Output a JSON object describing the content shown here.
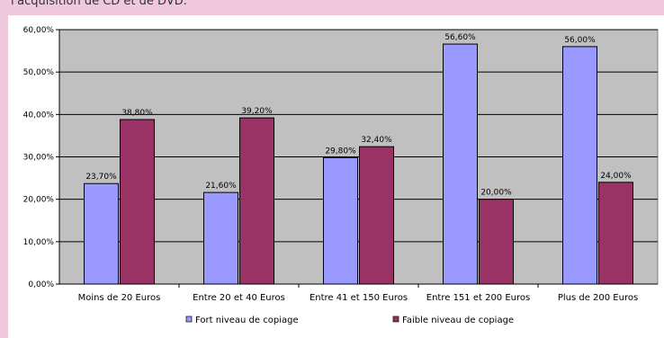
{
  "caption": "l'acquisition de CD et de DVD.",
  "colors": {
    "page_background": "#f0c8de",
    "plot_background": "#c0c0c0",
    "series_1": "#9999ff",
    "series_2": "#993366"
  },
  "chart_data": {
    "type": "bar",
    "categories": [
      "Moins de 20 Euros",
      "Entre 20 et 40 Euros",
      "Entre 41 et 150 Euros",
      "Entre 151 et 200 Euros",
      "Plus de 200 Euros"
    ],
    "series": [
      {
        "name": "Fort niveau de copiage",
        "values": [
          23.7,
          21.6,
          29.8,
          56.6,
          56.0
        ],
        "labels": [
          "23,70%",
          "21,60%",
          "29,80%",
          "56,60%",
          "56,00%"
        ],
        "color": "#9999ff"
      },
      {
        "name": "Faible niveau de copiage",
        "values": [
          38.8,
          39.2,
          32.4,
          20.0,
          24.0
        ],
        "labels": [
          "38,80%",
          "39,20%",
          "32,40%",
          "20,00%",
          "24,00%"
        ],
        "color": "#993366"
      }
    ],
    "yticks": [
      "0,00%",
      "10,00%",
      "20,00%",
      "30,00%",
      "40,00%",
      "50,00%",
      "60,00%"
    ],
    "ylim": [
      0,
      60
    ],
    "grid": true,
    "legend_position": "bottom"
  }
}
